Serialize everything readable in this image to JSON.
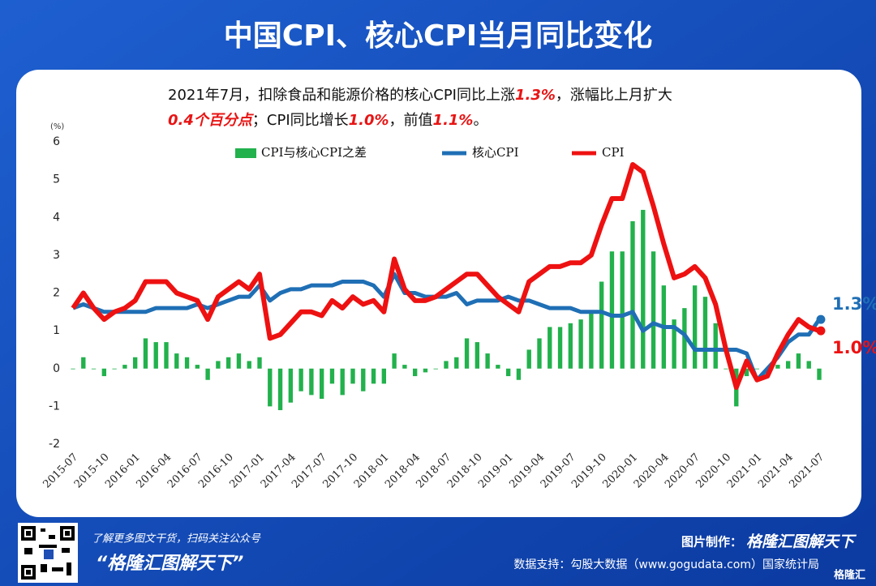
{
  "header": {
    "title": "中国CPI、核心CPI当月同比变化"
  },
  "chart_data": {
    "type": "bar-line",
    "subtitle_lines": [
      [
        {
          "text": "2021年7月，扣除食品和能源价格的核心CPI同比上涨",
          "highlight": false
        },
        {
          "text": "1.3%",
          "highlight": true
        },
        {
          "text": "，涨幅比上月扩大",
          "highlight": false
        }
      ],
      [
        {
          "text": "0.4个百分点",
          "highlight": true
        },
        {
          "text": "；CPI同比增长",
          "highlight": false
        },
        {
          "text": "1.0%",
          "highlight": true
        },
        {
          "text": "，前值",
          "highlight": false
        },
        {
          "text": "1.1%",
          "highlight": true
        },
        {
          "text": "。",
          "highlight": false
        }
      ]
    ],
    "y_unit": "(%)",
    "categories": [
      "2015-07",
      null,
      null,
      "2015-10",
      null,
      null,
      "2016-01",
      null,
      null,
      "2016-04",
      null,
      null,
      "2016-07",
      null,
      null,
      "2016-10",
      null,
      null,
      "2017-01",
      null,
      null,
      "2017-04",
      null,
      null,
      "2017-07",
      null,
      null,
      "2017-10",
      null,
      null,
      "2018-01",
      null,
      null,
      "2018-04",
      null,
      null,
      "2018-07",
      null,
      null,
      "2018-10",
      null,
      null,
      "2019-01",
      null,
      null,
      "2019-04",
      null,
      null,
      "2019-07",
      null,
      null,
      "2019-10",
      null,
      null,
      "2020-01",
      null,
      null,
      "2020-04",
      null,
      null,
      "2020-07",
      null,
      null,
      "2020-10",
      null,
      null,
      "2021-01",
      null,
      null,
      "2021-04",
      null,
      null,
      "2021-07"
    ],
    "series": [
      {
        "name": "CPI与核心CPI之差",
        "type": "bar",
        "color": "#22b14c",
        "values": [
          0.0,
          0.3,
          0.0,
          -0.2,
          0.0,
          0.1,
          0.3,
          0.8,
          0.7,
          0.7,
          0.4,
          0.3,
          0.1,
          -0.3,
          0.2,
          0.3,
          0.4,
          0.2,
          0.3,
          -1.0,
          -1.1,
          -0.9,
          -0.6,
          -0.7,
          -0.8,
          -0.4,
          -0.7,
          -0.4,
          -0.6,
          -0.4,
          -0.4,
          0.4,
          0.1,
          -0.2,
          -0.1,
          0.0,
          0.2,
          0.3,
          0.8,
          0.7,
          0.4,
          0.1,
          -0.2,
          -0.3,
          0.5,
          0.8,
          1.1,
          1.1,
          1.2,
          1.3,
          1.5,
          2.3,
          3.1,
          3.1,
          3.9,
          4.2,
          3.1,
          2.2,
          1.3,
          1.6,
          2.2,
          1.9,
          1.2,
          0.0,
          -1.0,
          -0.2,
          0.0,
          -0.2,
          0.1,
          0.2,
          0.4,
          0.2,
          -0.3
        ]
      },
      {
        "name": "核心CPI",
        "type": "line",
        "color": "#1f6fb5",
        "values": [
          1.6,
          1.7,
          1.6,
          1.5,
          1.5,
          1.5,
          1.5,
          1.5,
          1.6,
          1.6,
          1.6,
          1.6,
          1.7,
          1.6,
          1.7,
          1.8,
          1.9,
          1.9,
          2.2,
          1.8,
          2.0,
          2.1,
          2.1,
          2.2,
          2.2,
          2.2,
          2.3,
          2.3,
          2.3,
          2.2,
          1.9,
          2.5,
          2.0,
          2.0,
          1.9,
          1.9,
          1.9,
          2.0,
          1.7,
          1.8,
          1.8,
          1.8,
          1.9,
          1.8,
          1.8,
          1.7,
          1.6,
          1.6,
          1.6,
          1.5,
          1.5,
          1.5,
          1.4,
          1.4,
          1.5,
          1.0,
          1.2,
          1.1,
          1.1,
          0.9,
          0.5,
          0.5,
          0.5,
          0.5,
          0.5,
          0.4,
          -0.3,
          0.0,
          0.3,
          0.7,
          0.9,
          0.9,
          1.3
        ]
      },
      {
        "name": "CPI",
        "type": "line",
        "color": "#ee1111",
        "values": [
          1.6,
          2.0,
          1.6,
          1.3,
          1.5,
          1.6,
          1.8,
          2.3,
          2.3,
          2.3,
          2.0,
          1.9,
          1.8,
          1.3,
          1.9,
          2.1,
          2.3,
          2.1,
          2.5,
          0.8,
          0.9,
          1.2,
          1.5,
          1.5,
          1.4,
          1.8,
          1.6,
          1.9,
          1.7,
          1.8,
          1.5,
          2.9,
          2.1,
          1.8,
          1.8,
          1.9,
          2.1,
          2.3,
          2.5,
          2.5,
          2.2,
          1.9,
          1.7,
          1.5,
          2.3,
          2.5,
          2.7,
          2.7,
          2.8,
          2.8,
          3.0,
          3.8,
          4.5,
          4.5,
          5.4,
          5.2,
          4.3,
          3.3,
          2.4,
          2.5,
          2.7,
          2.4,
          1.7,
          0.5,
          -0.5,
          0.2,
          -0.3,
          -0.2,
          0.4,
          0.9,
          1.3,
          1.1,
          1.0
        ]
      }
    ],
    "annotations": [
      {
        "label": "1.3%",
        "value": 1.3,
        "color": "#1f6fb5"
      },
      {
        "label": "1.0%",
        "value": 1.0,
        "color": "#ee1111"
      }
    ],
    "ylim": [
      -2,
      6
    ],
    "yticks": [
      -2,
      -1,
      0,
      1,
      2,
      3,
      4,
      5,
      6
    ],
    "grid": false
  },
  "footer": {
    "qr_caption": "了解更多图文干货，扫码关注公众号",
    "account": "“格隆汇图解天下”",
    "made_by_label": "图片制作：",
    "made_by": "格隆汇图解天下",
    "source": "数据支持：勾股大数据（www.gogudata.com）国家统计局",
    "logo": "格隆汇"
  }
}
